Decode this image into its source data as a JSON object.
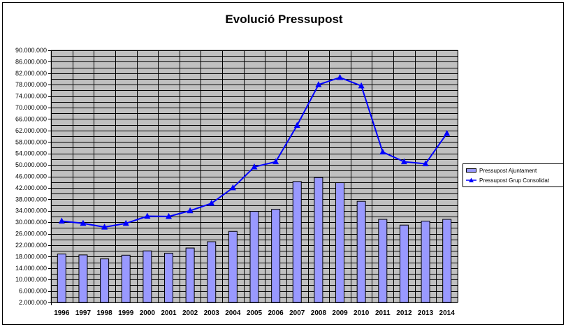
{
  "chart_data": {
    "type": "bar",
    "title": "Evolució Pressupost",
    "categories": [
      "1996",
      "1997",
      "1998",
      "1999",
      "2000",
      "2001",
      "2002",
      "2003",
      "2004",
      "2005",
      "2006",
      "2007",
      "2008",
      "2009",
      "2010",
      "2011",
      "2012",
      "2013",
      "2014"
    ],
    "series": [
      {
        "name": "Pressupost Ajuntament",
        "type": "bar",
        "color": "#9999ff",
        "values": [
          18900000,
          18600000,
          17200000,
          18500000,
          20000000,
          19200000,
          21000000,
          23200000,
          26800000,
          33800000,
          34500000,
          44200000,
          45600000,
          43800000,
          37300000,
          31000000,
          29000000,
          30400000,
          31000000
        ]
      },
      {
        "name": "Pressupost Grup Consolidat",
        "type": "line",
        "color": "#0000ff",
        "marker": "triangle",
        "values": [
          30400000,
          29600000,
          28300000,
          29600000,
          32100000,
          32000000,
          34000000,
          36600000,
          42000000,
          49300000,
          51100000,
          63800000,
          78000000,
          80500000,
          77600000,
          54500000,
          51100000,
          50400000,
          61000000
        ]
      }
    ],
    "y_ticks": [
      "2.000.000",
      "6.000.000",
      "10.000.000",
      "14.000.000",
      "18.000.000",
      "22.000.000",
      "26.000.000",
      "30.000.000",
      "34.000.000",
      "38.000.000",
      "42.000.000",
      "46.000.000",
      "50.000.000",
      "54.000.000",
      "58.000.000",
      "62.000.000",
      "66.000.000",
      "70.000.000",
      "74.000.000",
      "78.000.000",
      "82.000.000",
      "86.000.000",
      "90.000.000"
    ],
    "ylim": [
      2000000,
      90000000
    ],
    "y_step": 2000000,
    "grid": true,
    "plot_background": "#c0c0c0",
    "legend_position": "right"
  }
}
